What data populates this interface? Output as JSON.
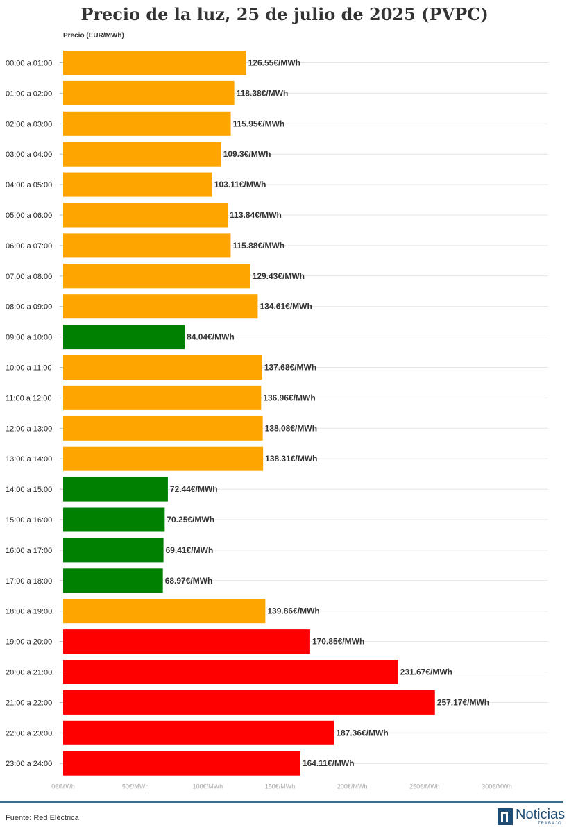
{
  "chart_data": {
    "type": "bar",
    "orientation": "horizontal",
    "title": "Precio de la luz, 25 de julio de 2025 (PVPC)",
    "ylabel": "Precio (EUR/MWh)",
    "xlim": [
      0,
      300
    ],
    "grid": true,
    "value_suffix": "€/MWh",
    "ticks": [
      "0€/MWh",
      "50€/MWh",
      "100€/MWh",
      "150€/MWh",
      "200€/MWh",
      "250€/MWh",
      "300€/MWh"
    ],
    "categories": [
      "00:00 a 01:00",
      "01:00 a 02:00",
      "02:00 a 03:00",
      "03:00 a 04:00",
      "04:00 a 05:00",
      "05:00 a 06:00",
      "06:00 a 07:00",
      "07:00 a 08:00",
      "08:00 a 09:00",
      "09:00 a 10:00",
      "10:00 a 11:00",
      "11:00 a 12:00",
      "12:00 a 13:00",
      "13:00 a 14:00",
      "14:00 a 15:00",
      "15:00 a 16:00",
      "16:00 a 17:00",
      "17:00 a 18:00",
      "18:00 a 19:00",
      "19:00 a 20:00",
      "20:00 a 21:00",
      "21:00 a 22:00",
      "22:00 a 23:00",
      "23:00 a 24:00"
    ],
    "values": [
      126.55,
      118.38,
      115.95,
      109.3,
      103.11,
      113.84,
      115.88,
      129.43,
      134.61,
      84.04,
      137.68,
      136.96,
      138.08,
      138.31,
      72.44,
      70.25,
      69.41,
      68.97,
      139.86,
      170.85,
      231.67,
      257.17,
      187.36,
      164.11
    ],
    "value_labels": [
      "126.55€/MWh",
      "118.38€/MWh",
      "115.95€/MWh",
      "109.3€/MWh",
      "103.11€/MWh",
      "113.84€/MWh",
      "115.88€/MWh",
      "129.43€/MWh",
      "134.61€/MWh",
      "84.04€/MWh",
      "137.68€/MWh",
      "136.96€/MWh",
      "138.08€/MWh",
      "138.31€/MWh",
      "72.44€/MWh",
      "70.25€/MWh",
      "69.41€/MWh",
      "68.97€/MWh",
      "139.86€/MWh",
      "170.85€/MWh",
      "231.67€/MWh",
      "257.17€/MWh",
      "187.36€/MWh",
      "164.11€/MWh"
    ],
    "bar_colors": [
      "orange",
      "orange",
      "orange",
      "orange",
      "orange",
      "orange",
      "orange",
      "orange",
      "orange",
      "green",
      "orange",
      "orange",
      "orange",
      "orange",
      "green",
      "green",
      "green",
      "green",
      "orange",
      "red",
      "red",
      "red",
      "red",
      "red"
    ],
    "palette": {
      "orange": "#ffa500",
      "green": "#008000",
      "red": "#ff0000"
    }
  },
  "footer": {
    "source": "Fuente: Red Eléctrica",
    "logo_name": "Noticias",
    "logo_sub": "TRABAJO"
  }
}
